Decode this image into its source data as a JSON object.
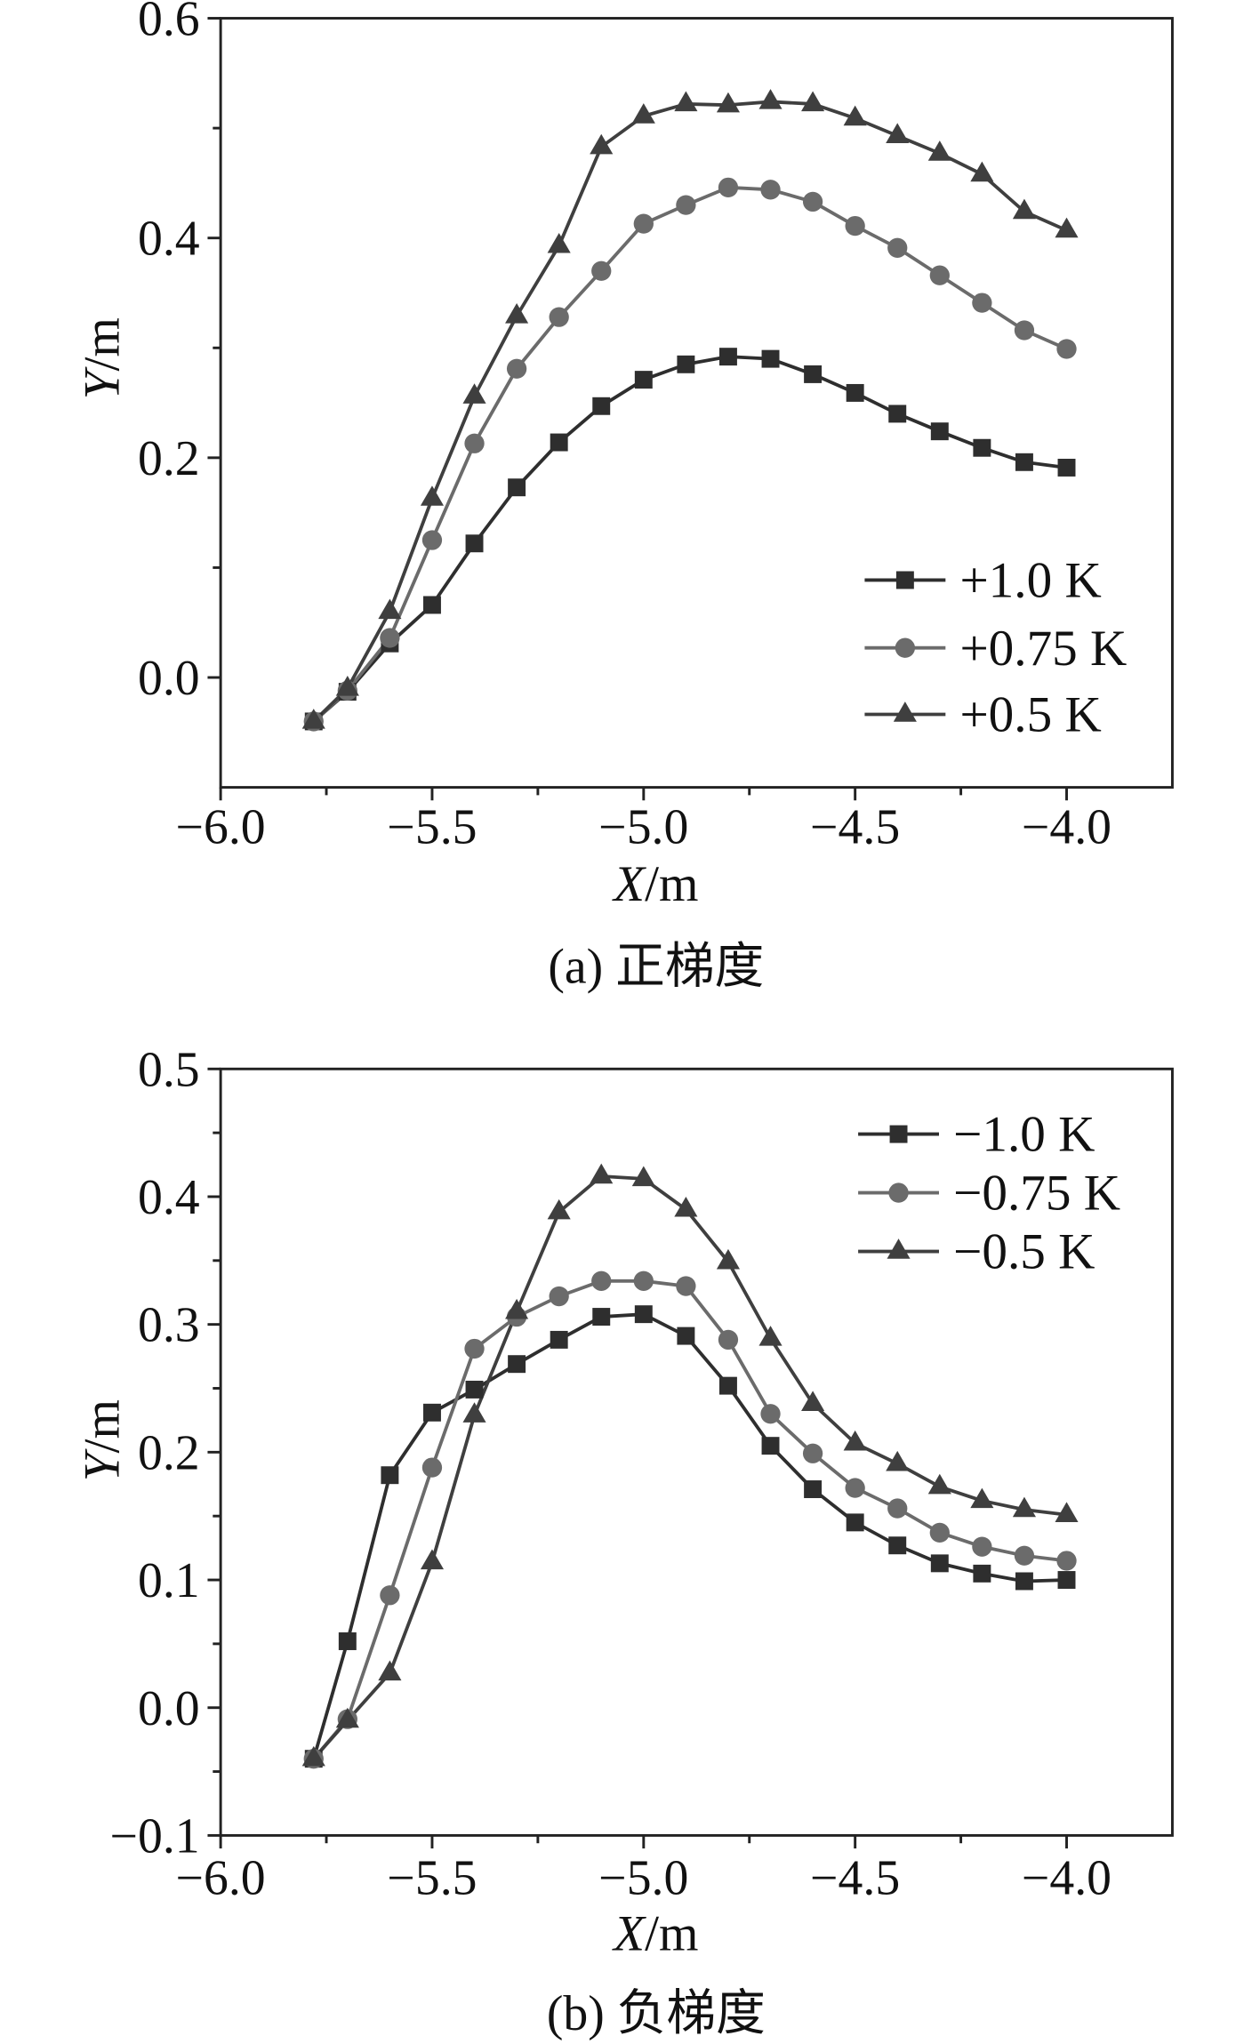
{
  "figure": {
    "background": "#ffffff",
    "axis_color": "#222222",
    "text_color": "#111111"
  },
  "chart_data": [
    {
      "type": "line",
      "title": "(a) 正梯度",
      "xlabel": "X/m",
      "ylabel": "Y/m",
      "xlim": [
        -6.0,
        -3.75
      ],
      "ylim": [
        -0.1,
        0.6
      ],
      "xticks": [
        -6.0,
        -5.5,
        -5.0,
        -4.5,
        -4.0
      ],
      "xtick_labels": [
        "−6.0",
        "−5.5",
        "−5.0",
        "−4.5",
        "−4.0"
      ],
      "yticks": [
        0.0,
        0.2,
        0.4,
        0.6
      ],
      "ytick_labels": [
        "0.0",
        "0.2",
        "0.4",
        "0.6"
      ],
      "grid": false,
      "legend_position": "bottom-right",
      "x": [
        -5.78,
        -5.7,
        -5.6,
        -5.5,
        -5.4,
        -5.3,
        -5.2,
        -5.1,
        -5.0,
        -4.9,
        -4.8,
        -4.7,
        -4.6,
        -4.5,
        -4.4,
        -4.3,
        -4.2,
        -4.1,
        -4.0
      ],
      "series": [
        {
          "name": "+1.0 K",
          "marker": "square",
          "color": "#2e2e2e",
          "values": [
            -0.04,
            -0.013,
            0.031,
            0.066,
            0.122,
            0.173,
            0.214,
            0.247,
            0.271,
            0.285,
            0.292,
            0.29,
            0.276,
            0.259,
            0.24,
            0.224,
            0.209,
            0.196,
            0.191
          ]
        },
        {
          "name": "+0.75 K",
          "marker": "circle",
          "color": "#6b6b6b",
          "values": [
            -0.04,
            -0.012,
            0.036,
            0.125,
            0.213,
            0.281,
            0.328,
            0.37,
            0.413,
            0.43,
            0.446,
            0.444,
            0.433,
            0.411,
            0.391,
            0.366,
            0.341,
            0.316,
            0.299
          ]
        },
        {
          "name": "+0.5 K",
          "marker": "triangle",
          "color": "#3f3f3f",
          "values": [
            -0.04,
            -0.01,
            0.06,
            0.163,
            0.256,
            0.329,
            0.393,
            0.483,
            0.511,
            0.522,
            0.521,
            0.524,
            0.522,
            0.509,
            0.493,
            0.477,
            0.458,
            0.424,
            0.407
          ]
        }
      ]
    },
    {
      "type": "line",
      "title": "(b) 负梯度",
      "xlabel": "X/m",
      "ylabel": "Y/m",
      "xlim": [
        -6.0,
        -3.75
      ],
      "ylim": [
        -0.1,
        0.5
      ],
      "xticks": [
        -6.0,
        -5.5,
        -5.0,
        -4.5,
        -4.0
      ],
      "xtick_labels": [
        "−6.0",
        "−5.5",
        "−5.0",
        "−4.5",
        "−4.0"
      ],
      "yticks": [
        -0.1,
        0.0,
        0.1,
        0.2,
        0.3,
        0.4,
        0.5
      ],
      "ytick_labels": [
        "−0.1",
        "0.0",
        "0.1",
        "0.2",
        "0.3",
        "0.4",
        "0.5"
      ],
      "grid": false,
      "legend_position": "top-right",
      "x": [
        -5.78,
        -5.7,
        -5.6,
        -5.5,
        -5.4,
        -5.3,
        -5.2,
        -5.1,
        -5.0,
        -4.9,
        -4.8,
        -4.7,
        -4.6,
        -4.5,
        -4.4,
        -4.3,
        -4.2,
        -4.1,
        -4.0
      ],
      "series": [
        {
          "name": "−1.0 K",
          "marker": "square",
          "color": "#2e2e2e",
          "values": [
            -0.04,
            0.052,
            0.182,
            0.231,
            0.249,
            0.269,
            0.288,
            0.306,
            0.308,
            0.291,
            0.252,
            0.205,
            0.171,
            0.145,
            0.127,
            0.113,
            0.105,
            0.099,
            0.1
          ]
        },
        {
          "name": "−0.75 K",
          "marker": "circle",
          "color": "#6b6b6b",
          "values": [
            -0.04,
            -0.009,
            0.088,
            0.188,
            0.281,
            0.306,
            0.322,
            0.334,
            0.334,
            0.33,
            0.288,
            0.23,
            0.199,
            0.172,
            0.156,
            0.137,
            0.126,
            0.119,
            0.115
          ]
        },
        {
          "name": "−0.5 K",
          "marker": "triangle",
          "color": "#3f3f3f",
          "values": [
            -0.04,
            -0.01,
            0.027,
            0.114,
            0.229,
            0.31,
            0.388,
            0.416,
            0.414,
            0.39,
            0.349,
            0.289,
            0.238,
            0.207,
            0.191,
            0.173,
            0.162,
            0.155,
            0.151
          ]
        }
      ]
    }
  ]
}
